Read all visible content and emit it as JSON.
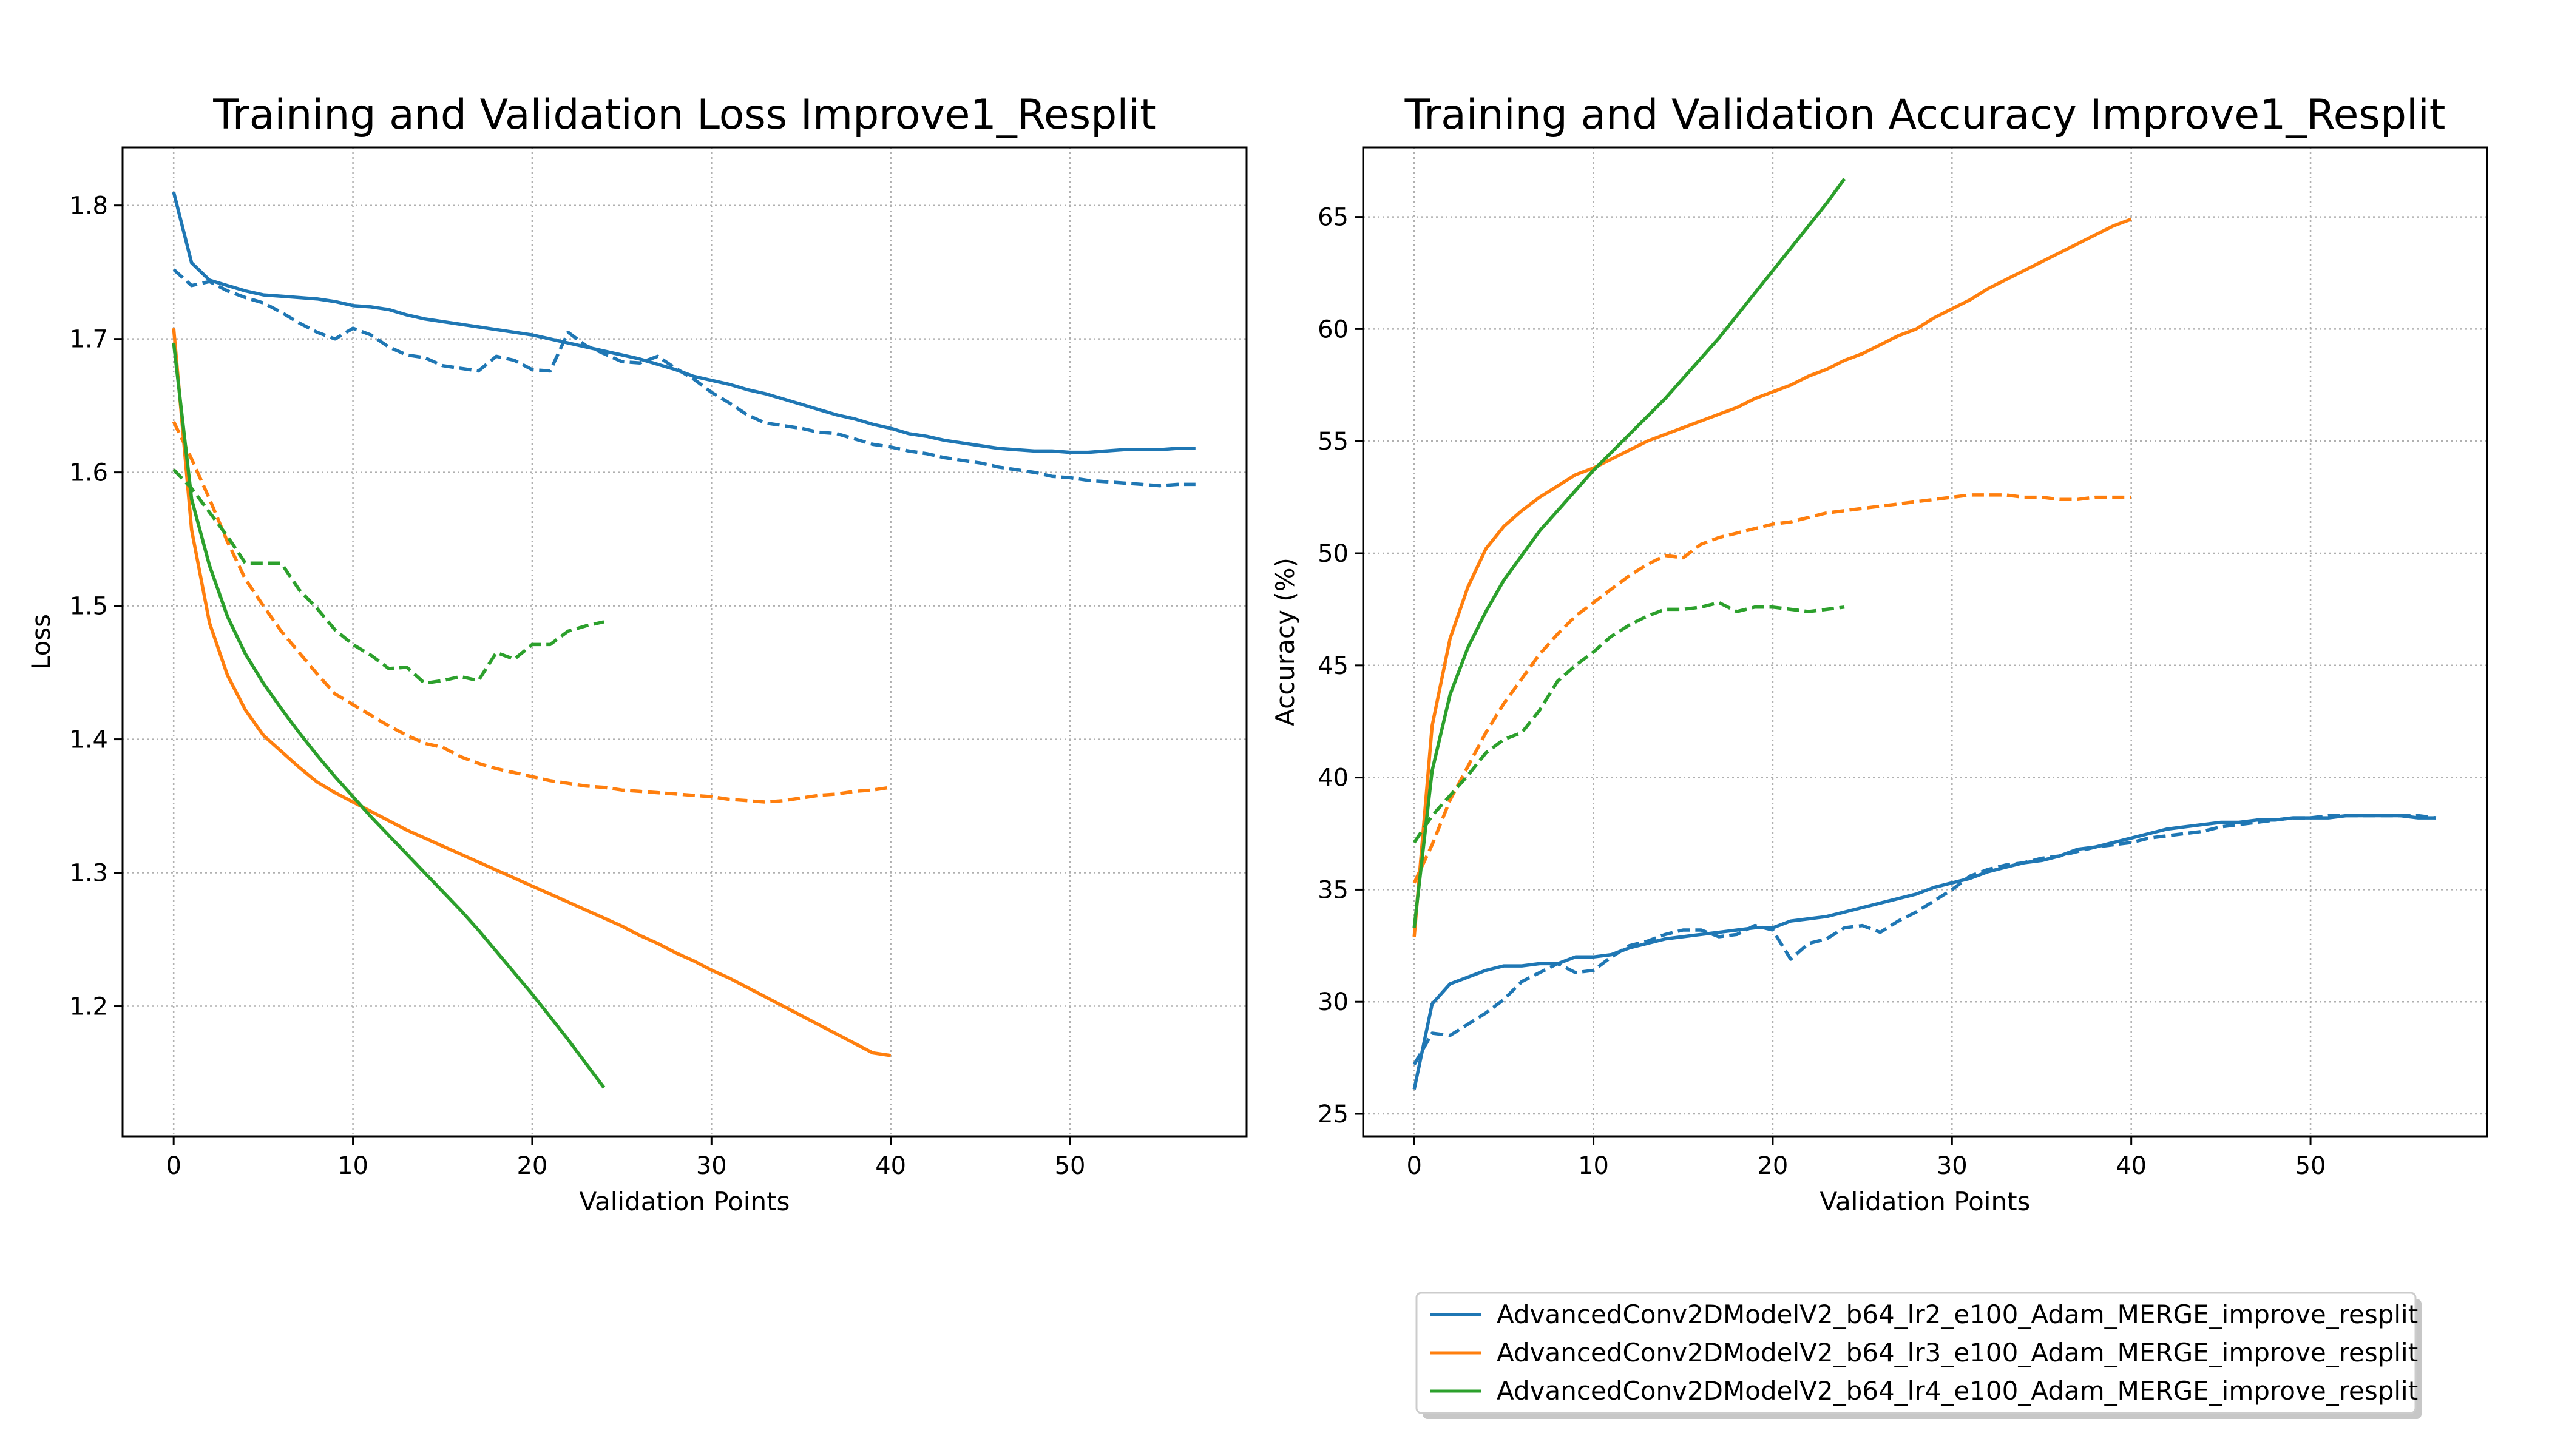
{
  "colors": {
    "lr2": "#1f77b4",
    "lr3": "#ff7f0e",
    "lr4": "#2ca02c"
  },
  "legend": {
    "location": "bottom-right",
    "entries": [
      {
        "label": "AdvancedConv2DModelV2_b64_lr2_e100_Adam_MERGE_improve_resplit",
        "color": "#1f77b4"
      },
      {
        "label": "AdvancedConv2DModelV2_b64_lr3_e100_Adam_MERGE_improve_resplit",
        "color": "#ff7f0e"
      },
      {
        "label": "AdvancedConv2DModelV2_b64_lr4_e100_Adam_MERGE_improve_resplit",
        "color": "#2ca02c"
      }
    ]
  },
  "chart_data": [
    {
      "type": "line",
      "title": "Training and Validation Loss Improve1_Resplit",
      "xlabel": "Validation Points",
      "ylabel": "Loss",
      "xlim": [
        -2.85,
        59.85
      ],
      "ylim": [
        1.1025,
        1.8435
      ],
      "xticks": [
        0,
        10,
        20,
        30,
        40,
        50
      ],
      "yticks": [
        1.2,
        1.3,
        1.4,
        1.5,
        1.6,
        1.7,
        1.8
      ],
      "grid": true,
      "grid_style": "dotted",
      "series": [
        {
          "key": "lr2",
          "style": "solid",
          "x_start": 0,
          "values": [
            1.81,
            1.757,
            1.744,
            1.74,
            1.736,
            1.733,
            1.732,
            1.731,
            1.73,
            1.728,
            1.725,
            1.724,
            1.722,
            1.718,
            1.715,
            1.713,
            1.711,
            1.709,
            1.707,
            1.705,
            1.703,
            1.7,
            1.697,
            1.694,
            1.691,
            1.688,
            1.685,
            1.681,
            1.677,
            1.672,
            1.669,
            1.666,
            1.662,
            1.659,
            1.655,
            1.651,
            1.647,
            1.643,
            1.64,
            1.636,
            1.633,
            1.629,
            1.627,
            1.624,
            1.622,
            1.62,
            1.618,
            1.617,
            1.616,
            1.616,
            1.615,
            1.615,
            1.616,
            1.617,
            1.617,
            1.617,
            1.618,
            1.618
          ]
        },
        {
          "key": "lr2",
          "style": "dashed",
          "x_start": 0,
          "values": [
            1.752,
            1.74,
            1.743,
            1.736,
            1.731,
            1.727,
            1.72,
            1.712,
            1.705,
            1.7,
            1.708,
            1.703,
            1.694,
            1.688,
            1.686,
            1.68,
            1.678,
            1.676,
            1.687,
            1.684,
            1.677,
            1.676,
            1.705,
            1.695,
            1.689,
            1.683,
            1.682,
            1.687,
            1.678,
            1.67,
            1.66,
            1.652,
            1.643,
            1.637,
            1.635,
            1.633,
            1.63,
            1.629,
            1.625,
            1.621,
            1.619,
            1.616,
            1.614,
            1.611,
            1.609,
            1.607,
            1.604,
            1.602,
            1.6,
            1.597,
            1.596,
            1.594,
            1.593,
            1.592,
            1.591,
            1.59,
            1.591,
            1.591
          ]
        },
        {
          "key": "lr3",
          "style": "solid",
          "x_start": 0,
          "values": [
            1.708,
            1.557,
            1.487,
            1.448,
            1.422,
            1.403,
            1.391,
            1.379,
            1.368,
            1.36,
            1.353,
            1.346,
            1.339,
            1.332,
            1.326,
            1.32,
            1.314,
            1.308,
            1.302,
            1.296,
            1.29,
            1.284,
            1.278,
            1.272,
            1.266,
            1.26,
            1.253,
            1.247,
            1.24,
            1.234,
            1.227,
            1.221,
            1.214,
            1.207,
            1.2,
            1.193,
            1.186,
            1.179,
            1.172,
            1.165,
            1.163
          ]
        },
        {
          "key": "lr3",
          "style": "dashed",
          "x_start": 0,
          "values": [
            1.638,
            1.61,
            1.58,
            1.548,
            1.52,
            1.5,
            1.481,
            1.465,
            1.449,
            1.434,
            1.426,
            1.418,
            1.41,
            1.403,
            1.397,
            1.394,
            1.387,
            1.382,
            1.378,
            1.375,
            1.372,
            1.369,
            1.367,
            1.365,
            1.364,
            1.362,
            1.361,
            1.36,
            1.359,
            1.358,
            1.357,
            1.355,
            1.354,
            1.353,
            1.354,
            1.356,
            1.358,
            1.359,
            1.361,
            1.362,
            1.364
          ]
        },
        {
          "key": "lr4",
          "style": "solid",
          "x_start": 0,
          "values": [
            1.697,
            1.58,
            1.53,
            1.492,
            1.464,
            1.442,
            1.423,
            1.405,
            1.388,
            1.372,
            1.357,
            1.342,
            1.328,
            1.314,
            1.3,
            1.286,
            1.272,
            1.257,
            1.241,
            1.225,
            1.209,
            1.192,
            1.175,
            1.157,
            1.139
          ]
        },
        {
          "key": "lr4",
          "style": "dashed",
          "x_start": 0,
          "values": [
            1.602,
            1.588,
            1.57,
            1.552,
            1.532,
            1.532,
            1.532,
            1.512,
            1.498,
            1.482,
            1.471,
            1.463,
            1.453,
            1.454,
            1.442,
            1.444,
            1.447,
            1.444,
            1.465,
            1.46,
            1.471,
            1.471,
            1.481,
            1.485,
            1.488
          ]
        }
      ]
    },
    {
      "type": "line",
      "title": "Training and Validation Accuracy Improve1_Resplit",
      "xlabel": "Validation Points",
      "ylabel": "Accuracy (%)",
      "xlim": [
        -2.85,
        59.85
      ],
      "ylim": [
        24.0,
        68.1
      ],
      "xticks": [
        0,
        10,
        20,
        30,
        40,
        50
      ],
      "yticks": [
        25,
        30,
        35,
        40,
        45,
        50,
        55,
        60,
        65
      ],
      "grid": true,
      "grid_style": "dotted",
      "series": [
        {
          "key": "lr2",
          "style": "solid",
          "x_start": 0,
          "values": [
            26.1,
            29.9,
            30.8,
            31.1,
            31.4,
            31.6,
            31.6,
            31.7,
            31.7,
            32.0,
            32.0,
            32.1,
            32.4,
            32.6,
            32.8,
            32.9,
            33.0,
            33.1,
            33.2,
            33.3,
            33.3,
            33.6,
            33.7,
            33.8,
            34.0,
            34.2,
            34.4,
            34.6,
            34.8,
            35.1,
            35.3,
            35.5,
            35.8,
            36.0,
            36.2,
            36.3,
            36.5,
            36.8,
            36.9,
            37.1,
            37.3,
            37.5,
            37.7,
            37.8,
            37.9,
            38.0,
            38.0,
            38.1,
            38.1,
            38.2,
            38.2,
            38.2,
            38.3,
            38.3,
            38.3,
            38.3,
            38.2,
            38.2
          ]
        },
        {
          "key": "lr2",
          "style": "dashed",
          "x_start": 0,
          "values": [
            27.2,
            28.6,
            28.5,
            29.0,
            29.5,
            30.1,
            30.9,
            31.3,
            31.7,
            31.3,
            31.4,
            32.0,
            32.5,
            32.7,
            33.0,
            33.2,
            33.2,
            32.9,
            33.0,
            33.4,
            33.2,
            31.9,
            32.6,
            32.8,
            33.3,
            33.4,
            33.1,
            33.6,
            34.0,
            34.5,
            35.0,
            35.6,
            35.9,
            36.1,
            36.2,
            36.4,
            36.5,
            36.7,
            36.9,
            37.0,
            37.1,
            37.3,
            37.4,
            37.5,
            37.6,
            37.8,
            37.9,
            38.0,
            38.1,
            38.2,
            38.2,
            38.3,
            38.3,
            38.3,
            38.3,
            38.3,
            38.3,
            38.2
          ]
        },
        {
          "key": "lr3",
          "style": "solid",
          "x_start": 0,
          "values": [
            32.9,
            42.3,
            46.2,
            48.5,
            50.2,
            51.2,
            51.9,
            52.5,
            53.0,
            53.5,
            53.8,
            54.2,
            54.6,
            55.0,
            55.3,
            55.6,
            55.9,
            56.2,
            56.5,
            56.9,
            57.2,
            57.5,
            57.9,
            58.2,
            58.6,
            58.9,
            59.3,
            59.7,
            60.0,
            60.5,
            60.9,
            61.3,
            61.8,
            62.2,
            62.6,
            63.0,
            63.4,
            63.8,
            64.2,
            64.6,
            64.9
          ]
        },
        {
          "key": "lr3",
          "style": "dashed",
          "x_start": 0,
          "values": [
            35.3,
            37.0,
            39.0,
            40.5,
            42.0,
            43.3,
            44.4,
            45.5,
            46.4,
            47.2,
            47.8,
            48.4,
            49.0,
            49.5,
            49.9,
            49.8,
            50.4,
            50.7,
            50.9,
            51.1,
            51.3,
            51.4,
            51.6,
            51.8,
            51.9,
            52.0,
            52.1,
            52.2,
            52.3,
            52.4,
            52.5,
            52.6,
            52.6,
            52.6,
            52.5,
            52.5,
            52.4,
            52.4,
            52.5,
            52.5,
            52.5
          ]
        },
        {
          "key": "lr4",
          "style": "solid",
          "x_start": 0,
          "values": [
            33.3,
            40.3,
            43.7,
            45.8,
            47.4,
            48.8,
            49.9,
            51.0,
            51.9,
            52.8,
            53.7,
            54.5,
            55.3,
            56.1,
            56.9,
            57.8,
            58.7,
            59.6,
            60.6,
            61.6,
            62.6,
            63.6,
            64.6,
            65.6,
            66.7
          ]
        },
        {
          "key": "lr4",
          "style": "dashed",
          "x_start": 0,
          "values": [
            37.1,
            38.3,
            39.2,
            40.1,
            41.1,
            41.7,
            42.0,
            43.0,
            44.3,
            45.0,
            45.6,
            46.3,
            46.8,
            47.2,
            47.5,
            47.5,
            47.6,
            47.8,
            47.4,
            47.6,
            47.6,
            47.5,
            47.4,
            47.5,
            47.6
          ]
        }
      ]
    }
  ]
}
